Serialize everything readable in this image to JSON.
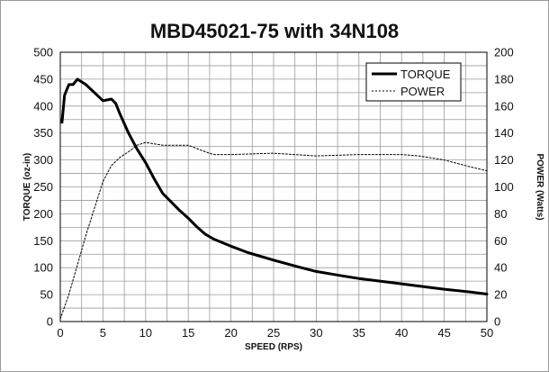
{
  "chart_data": {
    "type": "line",
    "title": "MBD45021-75 with 34N108",
    "xlabel": "SPEED (RPS)",
    "ylabel": "TORQUE (oz-in)",
    "y2label": "POWER (Watts)",
    "xlim": [
      0,
      50
    ],
    "ylim": [
      0,
      500
    ],
    "y2lim": [
      0,
      200
    ],
    "xticks": [
      0,
      5,
      10,
      15,
      20,
      25,
      30,
      35,
      40,
      45,
      50
    ],
    "yticks": [
      0,
      50,
      100,
      150,
      200,
      250,
      300,
      350,
      400,
      450,
      500
    ],
    "y2ticks": [
      0,
      20,
      40,
      60,
      80,
      100,
      120,
      140,
      160,
      180,
      200
    ],
    "grid": true,
    "legend": "top-right",
    "series": [
      {
        "name": "TORQUE",
        "axis": "left",
        "style": "solid",
        "x": [
          0.2,
          0.5,
          1,
          1.5,
          2,
          2.5,
          3,
          4,
          5,
          6,
          6.5,
          7,
          8,
          9,
          10,
          11,
          12,
          13,
          14,
          15,
          16,
          17,
          18,
          20,
          22,
          25,
          28,
          30,
          33,
          35,
          38,
          40,
          43,
          45,
          48,
          50
        ],
        "y": [
          370,
          420,
          440,
          440,
          450,
          445,
          440,
          425,
          410,
          413,
          405,
          385,
          350,
          320,
          295,
          265,
          238,
          222,
          206,
          192,
          176,
          162,
          153,
          140,
          128,
          114,
          101,
          93,
          85,
          80,
          74,
          70,
          64,
          60,
          55,
          51
        ]
      },
      {
        "name": "POWER",
        "axis": "right",
        "style": "dotted",
        "x": [
          0,
          1,
          2,
          3,
          4,
          5,
          6,
          7,
          8,
          9,
          10,
          11,
          12,
          13,
          15,
          17,
          18,
          20,
          25,
          30,
          35,
          40,
          42,
          45,
          48,
          50
        ],
        "y": [
          2,
          20,
          42,
          64,
          84,
          104,
          116,
          122,
          126,
          131,
          133,
          132,
          131,
          131,
          131,
          126,
          124,
          124,
          125,
          123,
          124,
          124,
          123,
          120,
          115,
          112
        ]
      }
    ]
  }
}
